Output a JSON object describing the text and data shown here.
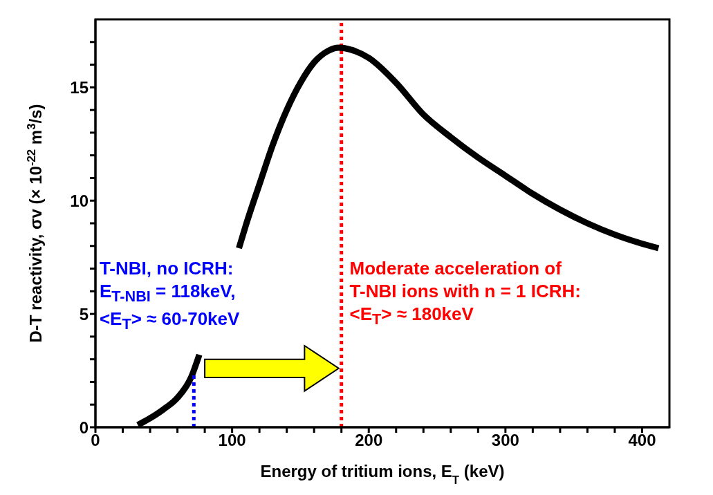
{
  "chart_data": {
    "type": "line",
    "xlabel": "Energy of tritium ions, E$_{T}$ (keV)",
    "ylabel": "D-T reactivity, σv  (× 10$^{-22}$ m$^{3}$/s)",
    "xlim": [
      0,
      420
    ],
    "ylim": [
      0,
      18
    ],
    "xticks": [
      0,
      {
        "value": 20,
        "label": null
      },
      {
        "value": 40,
        "label": null
      },
      {
        "value": 60,
        "label": null
      },
      {
        "value": 80,
        "label": null
      },
      100,
      {
        "value": 120,
        "label": null
      },
      {
        "value": 140,
        "label": null
      },
      {
        "value": 160,
        "label": null
      },
      {
        "value": 180,
        "label": null
      },
      200,
      {
        "value": 220,
        "label": null
      },
      {
        "value": 240,
        "label": null
      },
      {
        "value": 260,
        "label": null
      },
      {
        "value": 280,
        "label": null
      },
      300,
      {
        "value": 320,
        "label": null
      },
      {
        "value": 340,
        "label": null
      },
      {
        "value": 360,
        "label": null
      },
      {
        "value": 380,
        "label": null
      },
      400
    ],
    "yticks": [
      0,
      {
        "value": 1,
        "label": null
      },
      {
        "value": 2,
        "label": null
      },
      {
        "value": 3,
        "label": null
      },
      {
        "value": 4,
        "label": null
      },
      5,
      {
        "value": 6,
        "label": null
      },
      {
        "value": 7,
        "label": null
      },
      {
        "value": 8,
        "label": null
      },
      {
        "value": 9,
        "label": null
      },
      10,
      {
        "value": 11,
        "label": null
      },
      {
        "value": 12,
        "label": null
      },
      {
        "value": 13,
        "label": null
      },
      {
        "value": 14,
        "label": null
      },
      15,
      {
        "value": 16,
        "label": null
      },
      {
        "value": 17,
        "label": null
      }
    ],
    "series": [
      {
        "color": "#000000",
        "line_style": "solid",
        "x": [
          31,
          40,
          50,
          60,
          70,
          76,
          90,
          105,
          110,
          121,
          130,
          140,
          150,
          160,
          170,
          178,
          190,
          200,
          220,
          240,
          260,
          280,
          300,
          320,
          340,
          360,
          380,
          400,
          412
        ],
        "values": [
          0.1,
          0.4,
          0.8,
          1.3,
          2.2,
          3.2,
          null,
          7.9,
          8.9,
          10.9,
          12.5,
          14.0,
          15.2,
          16.1,
          16.6,
          16.75,
          16.6,
          16.3,
          15.2,
          13.8,
          12.8,
          11.9,
          11.1,
          10.3,
          9.6,
          9.0,
          8.5,
          8.1,
          7.9
        ]
      },
      {
        "color": "#0000ff",
        "line_style": "dotted",
        "x": [
          72,
          72
        ],
        "values": [
          0,
          2.3
        ]
      }
    ],
    "ref_lines": [
      {
        "axis": "x",
        "value": 180,
        "color": "#ff0000",
        "line_style": "dotted"
      }
    ],
    "annotations": [
      "T-NBI, no ICRH:",
      "E$_{T-NBI}$ = 118keV,",
      "<E$_{T}$> ≈ 60-70keV",
      "Moderate acceleration of",
      "T-NBI ions with n = 1 ICRH:",
      "<E$_{T}$> ≈ 180keV"
    ],
    "marker": "none"
  }
}
